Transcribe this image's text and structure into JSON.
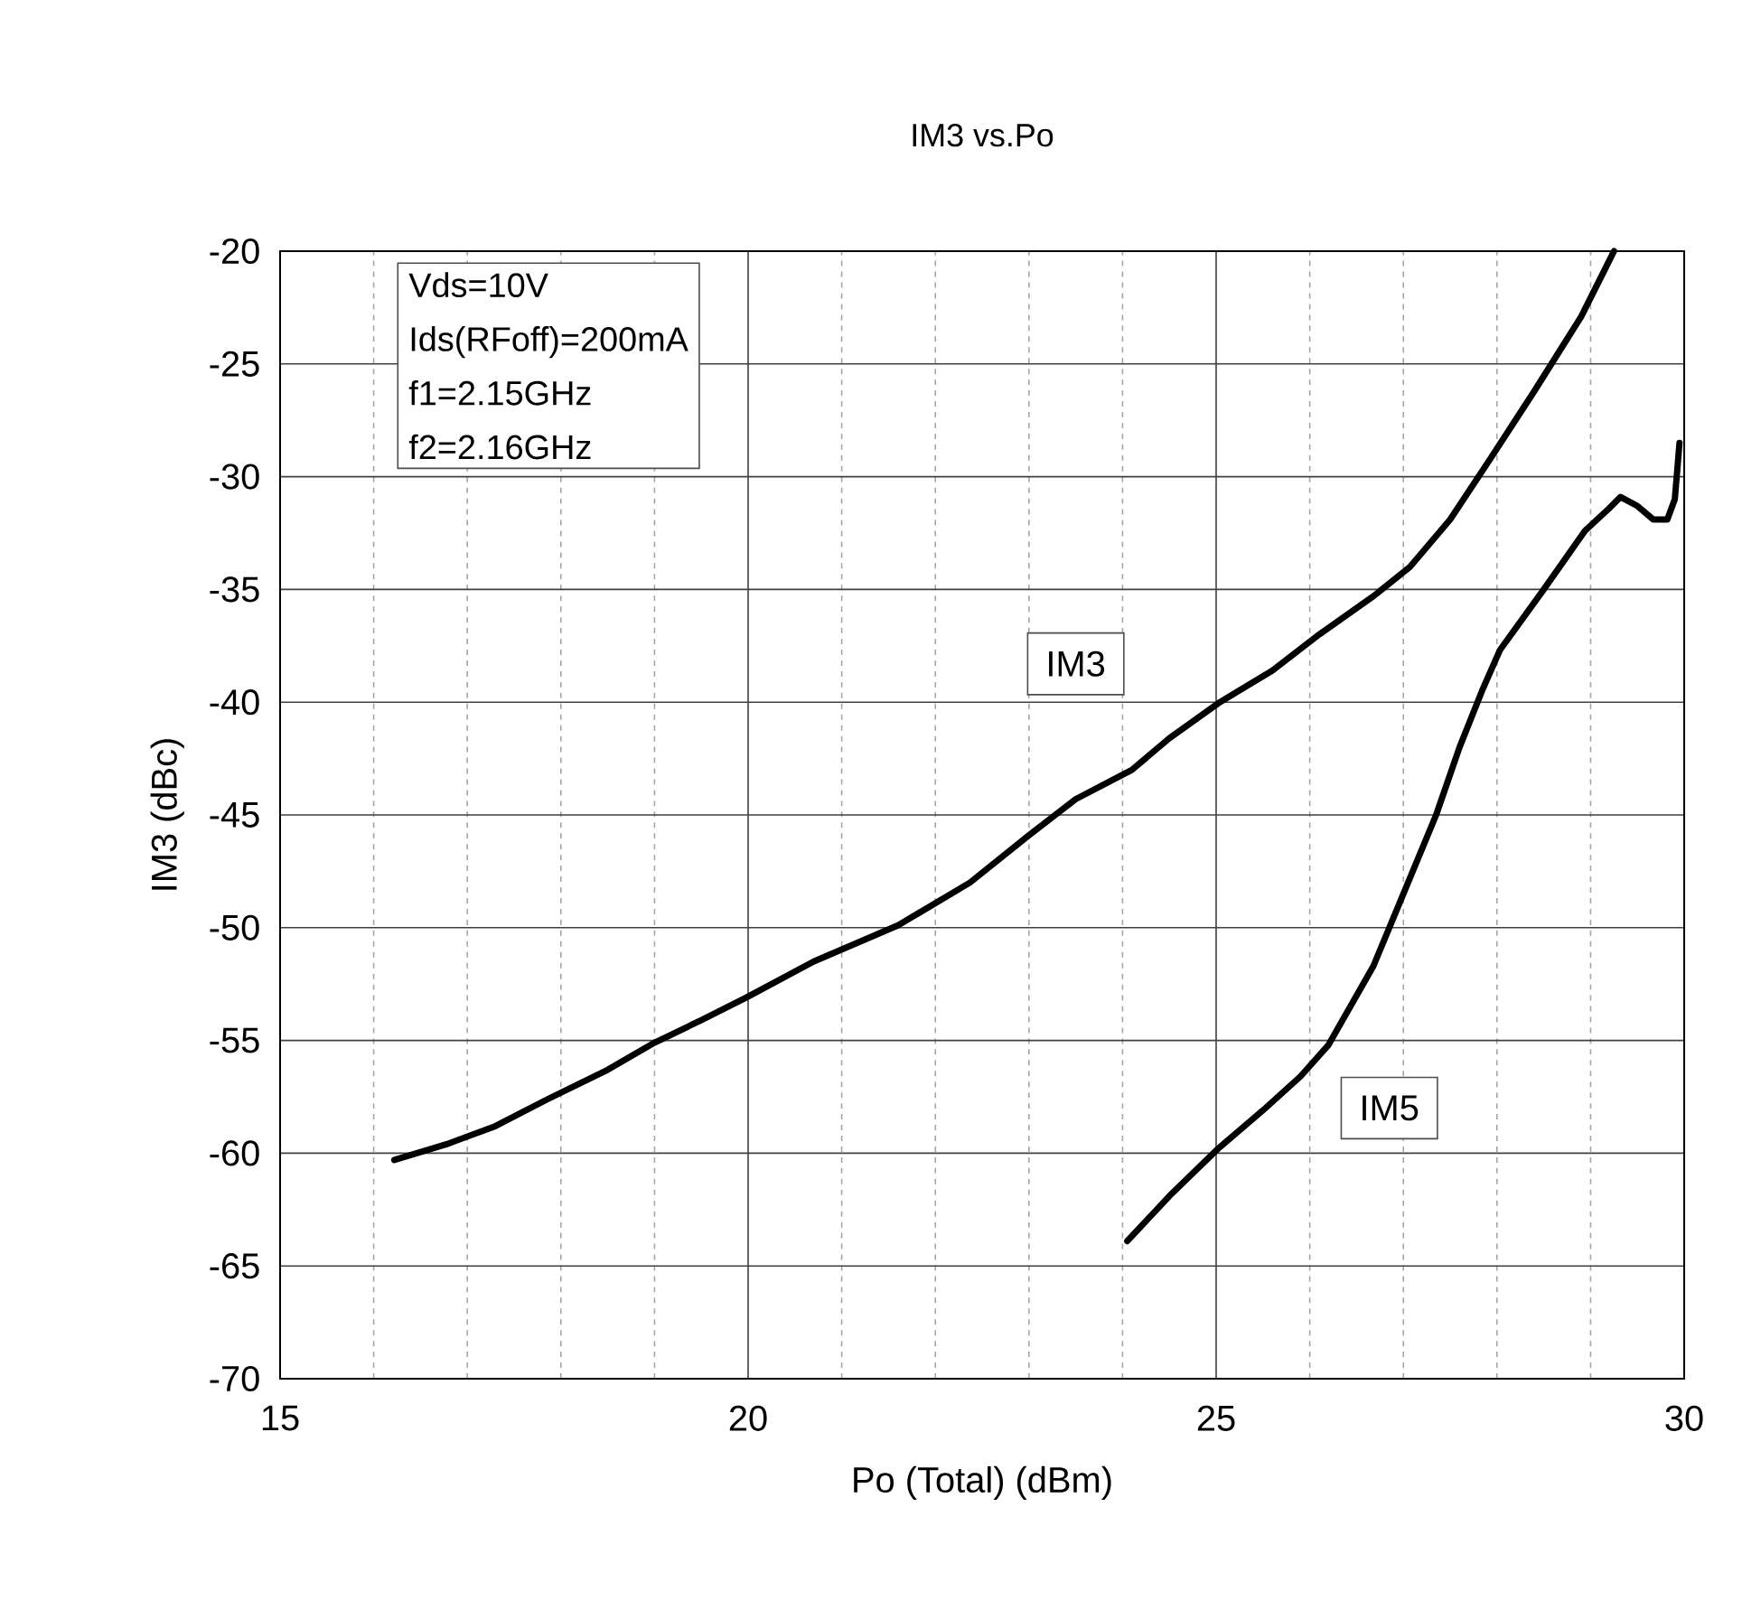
{
  "chart_data": {
    "type": "line",
    "title": "IM3 vs.Po",
    "xlabel": "Po (Total) (dBm)",
    "ylabel": "IM3 (dBc)",
    "annotations": [
      "Vds=10V",
      "Ids(RFoff)=200mA",
      "f1=2.15GHz",
      "f2=2.16GHz"
    ],
    "xlim": [
      15,
      30
    ],
    "xticks": [
      15,
      20,
      25,
      30
    ],
    "ylim": [
      -70,
      -20
    ],
    "yticks": [
      -70,
      -65,
      -60,
      -55,
      -50,
      -45,
      -40,
      -35,
      -30,
      -25,
      -20
    ],
    "grid": true,
    "line_style": "solid",
    "marker": "none",
    "series": [
      {
        "name": "IM3",
        "color": "#000000",
        "x": [
          16.22,
          16.78,
          17.3,
          17.86,
          18.5,
          19.0,
          19.5,
          19.98,
          20.7,
          21.6,
          22.37,
          23.0,
          23.5,
          24.1,
          24.5,
          25.04,
          25.6,
          26.1,
          26.68,
          27.07,
          27.5,
          27.93,
          28.4,
          28.9,
          29.25
        ],
        "values": [
          -60.3,
          -59.6,
          -58.8,
          -57.6,
          -56.3,
          -55.1,
          -54.1,
          -53.1,
          -51.5,
          -49.9,
          -48.0,
          -45.9,
          -44.3,
          -43.0,
          -41.6,
          -40.0,
          -38.6,
          -37.0,
          -35.3,
          -34.0,
          -31.9,
          -29.2,
          -26.2,
          -22.9,
          -20.0
        ]
      },
      {
        "name": "IM5",
        "color": "#000000",
        "x": [
          24.05,
          24.5,
          25.02,
          25.5,
          25.9,
          26.2,
          26.68,
          27.0,
          27.35,
          27.6,
          27.84,
          28.03,
          28.5,
          28.94,
          29.2,
          29.32,
          29.5,
          29.67,
          29.82,
          29.9,
          29.95
        ],
        "values": [
          -63.9,
          -61.9,
          -59.8,
          -58.1,
          -56.6,
          -55.2,
          -51.7,
          -48.5,
          -45.0,
          -42.0,
          -39.5,
          -37.7,
          -35.0,
          -32.4,
          -31.4,
          -30.9,
          -31.3,
          -31.9,
          -31.9,
          -31.0,
          -28.5
        ]
      }
    ]
  }
}
